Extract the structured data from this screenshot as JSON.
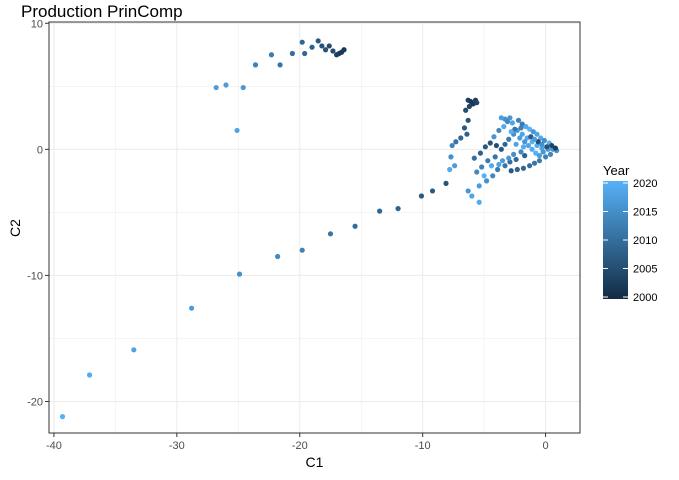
{
  "chart_data": {
    "type": "scatter",
    "title": "Production PrinComp",
    "xlabel": "C1",
    "ylabel": "C2",
    "xlim": [
      -40.4,
      2.8
    ],
    "ylim": [
      -22.5,
      10.1
    ],
    "x_ticks": [
      -40,
      -30,
      -20,
      -10,
      0
    ],
    "y_ticks": [
      -20,
      -10,
      0,
      10
    ],
    "x_tick_labels": [
      "-40",
      "-30",
      "-20",
      "-10",
      "0"
    ],
    "y_tick_labels": [
      "-20",
      "-10",
      "0",
      "10"
    ],
    "grid": true,
    "legend": {
      "title": "Year",
      "position": "right",
      "min": 2000,
      "max": 2020,
      "ticks": [
        2000,
        2005,
        2010,
        2015,
        2020
      ],
      "tick_labels": [
        "2000",
        "2005",
        "2010",
        "2015",
        "2020"
      ],
      "color_low": "#132B43",
      "color_high": "#56B1F7"
    },
    "colors": {
      "panel_border": "#333333",
      "grid": "#ebebeb",
      "tick_text": "#4d4d4d"
    },
    "points": [
      {
        "x": -39.3,
        "y": -21.2,
        "year": 2020
      },
      {
        "x": -37.1,
        "y": -17.9,
        "year": 2019
      },
      {
        "x": -33.5,
        "y": -15.9,
        "year": 2018
      },
      {
        "x": -28.8,
        "y": -12.6,
        "year": 2017
      },
      {
        "x": -24.9,
        "y": -9.9,
        "year": 2015
      },
      {
        "x": -21.8,
        "y": -8.5,
        "year": 2014
      },
      {
        "x": -19.8,
        "y": -8.0,
        "year": 2013
      },
      {
        "x": -17.5,
        "y": -6.7,
        "year": 2011
      },
      {
        "x": -15.5,
        "y": -6.1,
        "year": 2010
      },
      {
        "x": -13.5,
        "y": -4.9,
        "year": 2009
      },
      {
        "x": -12.0,
        "y": -4.7,
        "year": 2008
      },
      {
        "x": -10.1,
        "y": -3.7,
        "year": 2007
      },
      {
        "x": -9.2,
        "y": -3.3,
        "year": 2007
      },
      {
        "x": -8.1,
        "y": -2.7,
        "year": 2006
      },
      {
        "x": -25.1,
        "y": 1.5,
        "year": 2018
      },
      {
        "x": -24.6,
        "y": 4.9,
        "year": 2016
      },
      {
        "x": -26.0,
        "y": 5.1,
        "year": 2017
      },
      {
        "x": -26.8,
        "y": 4.9,
        "year": 2017
      },
      {
        "x": -23.6,
        "y": 6.7,
        "year": 2013
      },
      {
        "x": -22.3,
        "y": 7.5,
        "year": 2012
      },
      {
        "x": -21.6,
        "y": 6.7,
        "year": 2011
      },
      {
        "x": -20.6,
        "y": 7.6,
        "year": 2010
      },
      {
        "x": -19.8,
        "y": 8.5,
        "year": 2009
      },
      {
        "x": -19.6,
        "y": 7.6,
        "year": 2009
      },
      {
        "x": -19.0,
        "y": 8.1,
        "year": 2008
      },
      {
        "x": -18.5,
        "y": 8.6,
        "year": 2007
      },
      {
        "x": -18.2,
        "y": 8.2,
        "year": 2006
      },
      {
        "x": -17.9,
        "y": 7.9,
        "year": 2006
      },
      {
        "x": -17.6,
        "y": 8.2,
        "year": 2005
      },
      {
        "x": -17.3,
        "y": 7.8,
        "year": 2005
      },
      {
        "x": -17.0,
        "y": 7.5,
        "year": 2003
      },
      {
        "x": -16.8,
        "y": 7.6,
        "year": 2003
      },
      {
        "x": -16.6,
        "y": 7.7,
        "year": 2002
      },
      {
        "x": -16.4,
        "y": 7.9,
        "year": 2002
      },
      {
        "x": -6.3,
        "y": 3.9,
        "year": 2003
      },
      {
        "x": -6.1,
        "y": 3.8,
        "year": 2002
      },
      {
        "x": -5.9,
        "y": 3.6,
        "year": 2002
      },
      {
        "x": -5.7,
        "y": 3.9,
        "year": 2003
      },
      {
        "x": -5.6,
        "y": 3.7,
        "year": 2004
      },
      {
        "x": -6.2,
        "y": 3.4,
        "year": 2004
      },
      {
        "x": -6.5,
        "y": 3.1,
        "year": 2005
      },
      {
        "x": -6.3,
        "y": 2.3,
        "year": 2006
      },
      {
        "x": -6.6,
        "y": 1.7,
        "year": 2007
      },
      {
        "x": -6.4,
        "y": 1.2,
        "year": 2008
      },
      {
        "x": -6.9,
        "y": 0.9,
        "year": 2009
      },
      {
        "x": -7.3,
        "y": 0.6,
        "year": 2011
      },
      {
        "x": -7.6,
        "y": 0.3,
        "year": 2013
      },
      {
        "x": -7.7,
        "y": -0.6,
        "year": 2015
      },
      {
        "x": -7.4,
        "y": -1.3,
        "year": 2017
      },
      {
        "x": -7.8,
        "y": -1.6,
        "year": 2019
      },
      {
        "x": -5.4,
        "y": -4.2,
        "year": 2019
      },
      {
        "x": -6.0,
        "y": -3.7,
        "year": 2018
      },
      {
        "x": -6.3,
        "y": -3.3,
        "year": 2016
      },
      {
        "x": -5.4,
        "y": -2.9,
        "year": 2017
      },
      {
        "x": -4.8,
        "y": -2.5,
        "year": 2015
      },
      {
        "x": -4.3,
        "y": -2.1,
        "year": 2014
      },
      {
        "x": -3.9,
        "y": -1.6,
        "year": 2012
      },
      {
        "x": -3.3,
        "y": -1.3,
        "year": 2011
      },
      {
        "x": -2.9,
        "y": -1.0,
        "year": 2010
      },
      {
        "x": -2.4,
        "y": -0.8,
        "year": 2009
      },
      {
        "x": -1.7,
        "y": -0.5,
        "year": 2008
      },
      {
        "x": -5.6,
        "y": -1.8,
        "year": 2014
      },
      {
        "x": -5.2,
        "y": -1.4,
        "year": 2013
      },
      {
        "x": -4.7,
        "y": -0.9,
        "year": 2012
      },
      {
        "x": -4.1,
        "y": -0.6,
        "year": 2011
      },
      {
        "x": -5.8,
        "y": -0.7,
        "year": 2010
      },
      {
        "x": -5.3,
        "y": -0.3,
        "year": 2008
      },
      {
        "x": -4.9,
        "y": 0.2,
        "year": 2007
      },
      {
        "x": -4.5,
        "y": 0.5,
        "year": 2006
      },
      {
        "x": -4.0,
        "y": 0.3,
        "year": 2005
      },
      {
        "x": -3.6,
        "y": 0.0,
        "year": 2007
      },
      {
        "x": -3.3,
        "y": 0.4,
        "year": 2009
      },
      {
        "x": -3.0,
        "y": 0.8,
        "year": 2012
      },
      {
        "x": -2.6,
        "y": 1.2,
        "year": 2015
      },
      {
        "x": -2.3,
        "y": 1.5,
        "year": 2017
      },
      {
        "x": -1.9,
        "y": 1.2,
        "year": 2018
      },
      {
        "x": -1.5,
        "y": 0.9,
        "year": 2019
      },
      {
        "x": -1.1,
        "y": 0.6,
        "year": 2020
      },
      {
        "x": -0.7,
        "y": 0.3,
        "year": 2019
      },
      {
        "x": -0.3,
        "y": 0.1,
        "year": 2018
      },
      {
        "x": 0.2,
        "y": 0.0,
        "year": 2017
      },
      {
        "x": 0.6,
        "y": 0.0,
        "year": 2016
      },
      {
        "x": 0.9,
        "y": -0.1,
        "year": 2015
      },
      {
        "x": 0.4,
        "y": -0.4,
        "year": 2014
      },
      {
        "x": 0.0,
        "y": -0.6,
        "year": 2013
      },
      {
        "x": -0.5,
        "y": -0.9,
        "year": 2012
      },
      {
        "x": -0.9,
        "y": -1.1,
        "year": 2011
      },
      {
        "x": -1.3,
        "y": -1.3,
        "year": 2010
      },
      {
        "x": -1.8,
        "y": -1.5,
        "year": 2009
      },
      {
        "x": -2.3,
        "y": -1.6,
        "year": 2008
      },
      {
        "x": -2.8,
        "y": -1.7,
        "year": 2007
      },
      {
        "x": -3.3,
        "y": 2.4,
        "year": 2015
      },
      {
        "x": -2.9,
        "y": 2.5,
        "year": 2016
      },
      {
        "x": -3.6,
        "y": 2.5,
        "year": 2017
      },
      {
        "x": -3.1,
        "y": 2.2,
        "year": 2014
      },
      {
        "x": -2.7,
        "y": 2.1,
        "year": 2018
      },
      {
        "x": -2.2,
        "y": 2.3,
        "year": 2013
      },
      {
        "x": -1.9,
        "y": 2.0,
        "year": 2012
      },
      {
        "x": -1.6,
        "y": 1.8,
        "year": 2019
      },
      {
        "x": -1.3,
        "y": 1.6,
        "year": 2020
      },
      {
        "x": -1.0,
        "y": 1.4,
        "year": 2016
      },
      {
        "x": -0.7,
        "y": 1.2,
        "year": 2018
      },
      {
        "x": -0.4,
        "y": 0.9,
        "year": 2019
      },
      {
        "x": -0.1,
        "y": 0.7,
        "year": 2015
      },
      {
        "x": 0.3,
        "y": 0.5,
        "year": 2020
      },
      {
        "x": -2.5,
        "y": 1.6,
        "year": 2011
      },
      {
        "x": -2.1,
        "y": 0.9,
        "year": 2017
      },
      {
        "x": -1.7,
        "y": 0.6,
        "year": 2016
      },
      {
        "x": -1.4,
        "y": 0.3,
        "year": 2018
      },
      {
        "x": -1.1,
        "y": 0.0,
        "year": 2019
      },
      {
        "x": -0.8,
        "y": -0.3,
        "year": 2020
      },
      {
        "x": -0.5,
        "y": -0.5,
        "year": 2017
      },
      {
        "x": -0.2,
        "y": -0.2,
        "year": 2016
      },
      {
        "x": 0.1,
        "y": 0.2,
        "year": 2006
      },
      {
        "x": 0.5,
        "y": 0.3,
        "year": 2004
      },
      {
        "x": 0.8,
        "y": 0.1,
        "year": 2003
      },
      {
        "x": -0.6,
        "y": 0.6,
        "year": 2005
      },
      {
        "x": -1.2,
        "y": 1.0,
        "year": 2007
      },
      {
        "x": -2.0,
        "y": -0.2,
        "year": 2014
      },
      {
        "x": -2.6,
        "y": -0.4,
        "year": 2015
      },
      {
        "x": -3.0,
        "y": -0.7,
        "year": 2016
      },
      {
        "x": -3.5,
        "y": -0.9,
        "year": 2017
      },
      {
        "x": -3.8,
        "y": -1.2,
        "year": 2018
      },
      {
        "x": -4.4,
        "y": -1.3,
        "year": 2019
      },
      {
        "x": -5.0,
        "y": -2.1,
        "year": 2020
      },
      {
        "x": -2.4,
        "y": 0.4,
        "year": 2018
      },
      {
        "x": -1.8,
        "y": 0.2,
        "year": 2019
      },
      {
        "x": -0.9,
        "y": 0.8,
        "year": 2017
      },
      {
        "x": -0.3,
        "y": 0.4,
        "year": 2015
      },
      {
        "x": -4.2,
        "y": 1.0,
        "year": 2016
      },
      {
        "x": -3.8,
        "y": 1.5,
        "year": 2014
      },
      {
        "x": -3.4,
        "y": 1.8,
        "year": 2019
      },
      {
        "x": -2.8,
        "y": 1.4,
        "year": 2020
      },
      {
        "x": -2.0,
        "y": 1.7,
        "year": 2013
      }
    ]
  }
}
